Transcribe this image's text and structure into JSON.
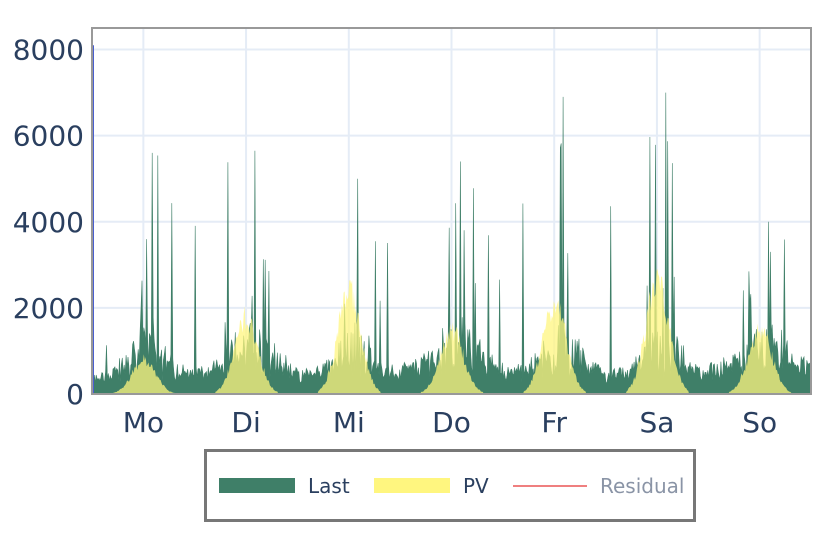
{
  "chart_data": {
    "type": "area",
    "title": "",
    "xlabel": "",
    "ylabel": "",
    "categories": [
      "Mo",
      "Di",
      "Mi",
      "Do",
      "Fr",
      "Sa",
      "So"
    ],
    "ylim": [
      0,
      8500
    ],
    "yticks": [
      0,
      2000,
      4000,
      6000,
      8000
    ],
    "grid": true,
    "legend_position": "bottom",
    "series": [
      {
        "name": "Last",
        "color": "#3f7f68",
        "visible": true,
        "baseline_by_day": [
          330,
          480,
          380,
          520,
          430,
          380,
          520
        ],
        "peak_by_day": [
          5600,
          5650,
          5000,
          5400,
          6900,
          7000,
          4000
        ],
        "initial_spike": 8100
      },
      {
        "name": "PV",
        "color": "#fff67f",
        "visible": true,
        "peak_by_day": [
          850,
          1900,
          2500,
          1550,
          2250,
          2700,
          1600
        ]
      },
      {
        "name": "Residual",
        "color": "#ef7f7f",
        "visible": false
      }
    ]
  },
  "legend": {
    "items": [
      {
        "label": "Last",
        "color": "#3f7f68",
        "kind": "area"
      },
      {
        "label": "PV",
        "color": "#fff67f",
        "kind": "area"
      },
      {
        "label": "Residual",
        "color": "#ef7f7f",
        "kind": "line",
        "inactive": true
      }
    ]
  }
}
